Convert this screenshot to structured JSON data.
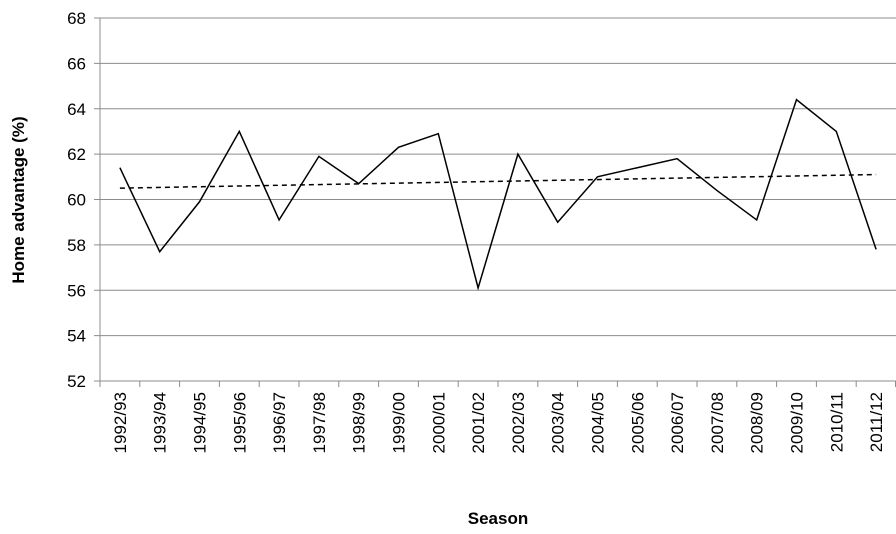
{
  "chart_data": {
    "type": "line",
    "x_label": "Season",
    "y_label": "Home advantage (%)",
    "categories": [
      "1992/93",
      "1993/94",
      "1994/95",
      "1995/96",
      "1996/97",
      "1997/98",
      "1998/99",
      "1999/00",
      "2000/01",
      "2001/02",
      "2002/03",
      "2003/04",
      "2004/05",
      "2005/06",
      "2006/07",
      "2007/08",
      "2008/09",
      "2009/10",
      "2010/11",
      "2011/12"
    ],
    "values": [
      61.4,
      57.7,
      59.9,
      63.0,
      59.1,
      61.9,
      60.7,
      62.3,
      62.9,
      56.1,
      62.0,
      59.0,
      61.0,
      61.4,
      61.8,
      60.4,
      59.1,
      64.4,
      63.0,
      57.8
    ],
    "color": "#000000",
    "trend": {
      "values": [
        60.5,
        61.1
      ],
      "color": "#000000",
      "dashed": true
    },
    "ylim": [
      52,
      68
    ],
    "yticks": [
      52,
      54,
      56,
      58,
      60,
      62,
      64,
      66,
      68
    ],
    "grid": true
  }
}
